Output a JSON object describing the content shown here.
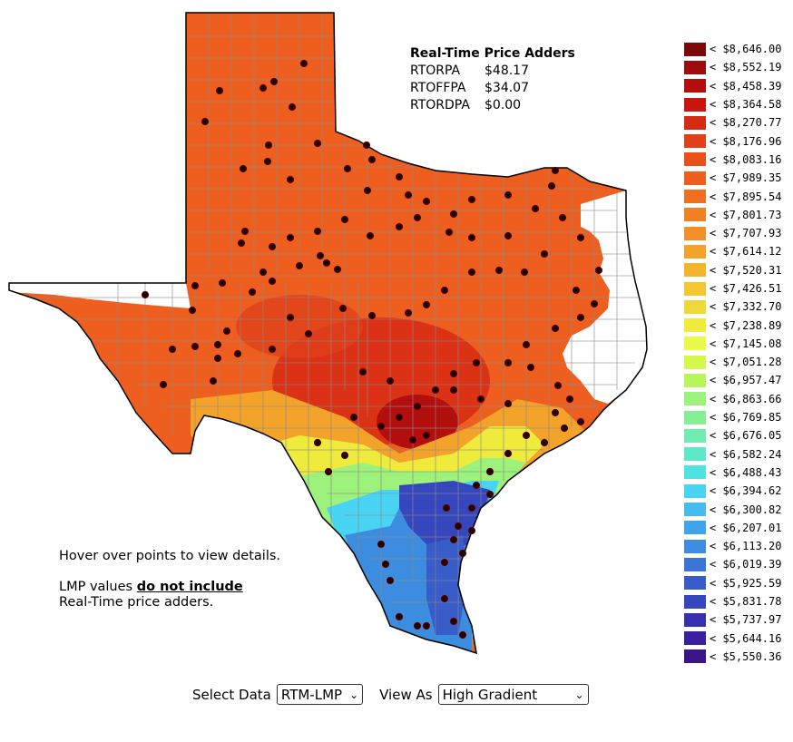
{
  "adders": {
    "title": "Real-Time Price Adders",
    "rows": [
      {
        "label": "RTORPA",
        "value": "$48.17"
      },
      {
        "label": "RTOFFPA",
        "value": "$34.07"
      },
      {
        "label": "RTORDPA",
        "value": "$0.00"
      }
    ]
  },
  "legend": [
    {
      "label": "< $8,646.00",
      "color": "#7a0a0a"
    },
    {
      "label": "< $8,552.19",
      "color": "#9c0c0c"
    },
    {
      "label": "< $8,458.39",
      "color": "#b40f0f"
    },
    {
      "label": "< $8,364.58",
      "color": "#c8150f"
    },
    {
      "label": "< $8,270.77",
      "color": "#d72a14"
    },
    {
      "label": "< $8,176.96",
      "color": "#e0401a"
    },
    {
      "label": "< $8,083.16",
      "color": "#e8501c"
    },
    {
      "label": "< $7,989.35",
      "color": "#ee5f1f"
    },
    {
      "label": "< $7,895.54",
      "color": "#f07022"
    },
    {
      "label": "< $7,801.73",
      "color": "#f28025"
    },
    {
      "label": "< $7,707.93",
      "color": "#f39128"
    },
    {
      "label": "< $7,614.12",
      "color": "#f3a22a"
    },
    {
      "label": "< $7,520.31",
      "color": "#f3b52d"
    },
    {
      "label": "< $7,426.51",
      "color": "#f3c731"
    },
    {
      "label": "< $7,332.70",
      "color": "#f0d838"
    },
    {
      "label": "< $7,238.89",
      "color": "#eeeb3c"
    },
    {
      "label": "< $7,145.08",
      "color": "#eaf94a"
    },
    {
      "label": "< $7,051.28",
      "color": "#d4f84e"
    },
    {
      "label": "< $6,957.47",
      "color": "#b8f55a"
    },
    {
      "label": "< $6,863.66",
      "color": "#9cf27a"
    },
    {
      "label": "< $6,769.85",
      "color": "#86ef96"
    },
    {
      "label": "< $6,676.05",
      "color": "#70ecb0"
    },
    {
      "label": "< $6,582.24",
      "color": "#5ee8c8"
    },
    {
      "label": "< $6,488.43",
      "color": "#50e2e0"
    },
    {
      "label": "< $6,394.62",
      "color": "#48d4f2"
    },
    {
      "label": "< $6,300.82",
      "color": "#44bcf0"
    },
    {
      "label": "< $6,207.01",
      "color": "#40a4ea"
    },
    {
      "label": "< $6,113.20",
      "color": "#3c8ce0"
    },
    {
      "label": "< $6,019.39",
      "color": "#3a74d4"
    },
    {
      "label": "< $5,925.59",
      "color": "#385cc8"
    },
    {
      "label": "< $5,831.78",
      "color": "#3646bc"
    },
    {
      "label": "< $5,737.97",
      "color": "#3632ae"
    },
    {
      "label": "< $5,644.16",
      "color": "#3a1f9e"
    },
    {
      "label": "< $5,550.36",
      "color": "#3b1488"
    }
  ],
  "notes": {
    "hover": "Hover over points to view details.",
    "lmp_prefix": "LMP values ",
    "lmp_strong": "do not include",
    "lmp_suffix": "Real-Time price adders."
  },
  "controls": {
    "select_data_label": "Select Data",
    "select_data_value": "RTM-LMP",
    "view_as_label": "View As",
    "view_as_value": "High Gradient"
  },
  "colors": {
    "base_orange": "#ee5f1f",
    "county_lines": "#8a8a8a",
    "settlement_point": "#1a0000"
  }
}
